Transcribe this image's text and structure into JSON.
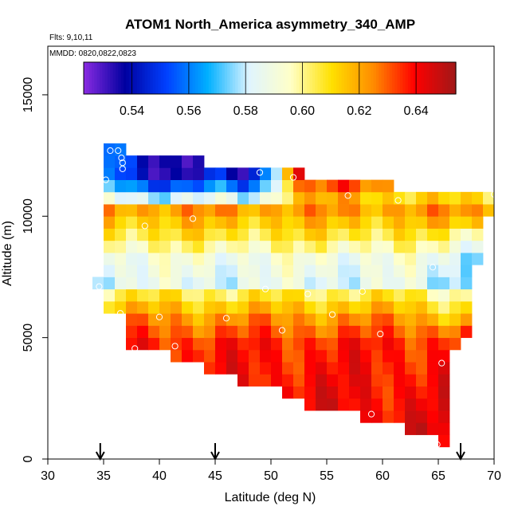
{
  "chart_data": {
    "type": "heatmap",
    "title": "ATOM1 North_America asymmetry_340_AMP",
    "flights_label": "Flts: 9,10,11",
    "mmdd_label": "MMDD: 0820,0822,0823",
    "xlabel": "Latitude (deg N)",
    "ylabel": "Altitude (m)",
    "xlim": [
      30,
      70
    ],
    "ylim": [
      0,
      17000
    ],
    "x_ticks": [
      30,
      35,
      40,
      45,
      50,
      55,
      60,
      65,
      70
    ],
    "y_ticks": [
      0,
      5000,
      10000,
      15000
    ],
    "colorbar": {
      "range": [
        0.523,
        0.654
      ],
      "ticks": [
        0.54,
        0.56,
        0.58,
        0.6,
        0.62,
        0.64
      ],
      "tick_labels": [
        "0.54",
        "0.56",
        "0.58",
        "0.60",
        "0.62",
        "0.64"
      ],
      "palette": [
        "#8a2be2",
        "#0000a0",
        "#0040ff",
        "#00b0ff",
        "#dff4ff",
        "#ffffc8",
        "#ffe000",
        "#ff8c00",
        "#ff0000",
        "#a01818"
      ]
    },
    "grid": {
      "lat_start": 34,
      "lat_step": 1,
      "alt_start": 500,
      "alt_step": 500
    },
    "columns": [
      {
        "lat": 34.5,
        "alt_min": 7000,
        "alt_max": 7500
      },
      {
        "lat": 35.5,
        "alt_min": 6000,
        "alt_max": 13000
      },
      {
        "lat": 36.5,
        "alt_min": 6000,
        "alt_max": 13000
      },
      {
        "lat": 37.5,
        "alt_min": 4500,
        "alt_max": 12500
      },
      {
        "lat": 38.5,
        "alt_min": 4500,
        "alt_max": 12500
      },
      {
        "lat": 39.5,
        "alt_min": 4500,
        "alt_max": 12500
      },
      {
        "lat": 40.5,
        "alt_min": 4500,
        "alt_max": 12500
      },
      {
        "lat": 41.5,
        "alt_min": 4000,
        "alt_max": 12500
      },
      {
        "lat": 42.5,
        "alt_min": 4000,
        "alt_max": 12500
      },
      {
        "lat": 43.5,
        "alt_min": 4000,
        "alt_max": 12500
      },
      {
        "lat": 44.5,
        "alt_min": 3500,
        "alt_max": 12000
      },
      {
        "lat": 45.5,
        "alt_min": 3500,
        "alt_max": 12000
      },
      {
        "lat": 46.5,
        "alt_min": 3500,
        "alt_max": 12000
      },
      {
        "lat": 47.5,
        "alt_min": 3000,
        "alt_max": 12000
      },
      {
        "lat": 48.5,
        "alt_min": 3000,
        "alt_max": 12000
      },
      {
        "lat": 49.5,
        "alt_min": 3000,
        "alt_max": 12000
      },
      {
        "lat": 50.5,
        "alt_min": 3000,
        "alt_max": 12000
      },
      {
        "lat": 51.5,
        "alt_min": 2500,
        "alt_max": 12000
      },
      {
        "lat": 52.5,
        "alt_min": 2500,
        "alt_max": 12000
      },
      {
        "lat": 53.5,
        "alt_min": 2000,
        "alt_max": 11500
      },
      {
        "lat": 54.5,
        "alt_min": 2000,
        "alt_max": 11500
      },
      {
        "lat": 55.5,
        "alt_min": 2000,
        "alt_max": 11500
      },
      {
        "lat": 56.5,
        "alt_min": 2000,
        "alt_max": 11500
      },
      {
        "lat": 57.5,
        "alt_min": 2000,
        "alt_max": 11500
      },
      {
        "lat": 58.5,
        "alt_min": 1500,
        "alt_max": 11500
      },
      {
        "lat": 59.5,
        "alt_min": 1500,
        "alt_max": 11500
      },
      {
        "lat": 60.5,
        "alt_min": 1500,
        "alt_max": 11500
      },
      {
        "lat": 61.5,
        "alt_min": 1500,
        "alt_max": 11000
      },
      {
        "lat": 62.5,
        "alt_min": 1000,
        "alt_max": 11000
      },
      {
        "lat": 63.5,
        "alt_min": 1000,
        "alt_max": 11000
      },
      {
        "lat": 64.5,
        "alt_min": 1000,
        "alt_max": 11000
      },
      {
        "lat": 65.5,
        "alt_min": 500,
        "alt_max": 11000
      },
      {
        "lat": 66.5,
        "alt_min": 4500,
        "alt_max": 11000
      },
      {
        "lat": 67.5,
        "alt_min": 5000,
        "alt_max": 11000
      },
      {
        "lat": 68.5,
        "alt_min": 8000,
        "alt_max": 11000
      },
      {
        "lat": 69.5,
        "alt_min": 10000,
        "alt_max": 11000
      }
    ],
    "profile": [
      {
        "alt": 500,
        "value": 0.643
      },
      {
        "alt": 2500,
        "value": 0.64
      },
      {
        "alt": 4500,
        "value": 0.636
      },
      {
        "alt": 5500,
        "value": 0.624
      },
      {
        "alt": 6500,
        "value": 0.606
      },
      {
        "alt": 7000,
        "value": 0.585
      },
      {
        "alt": 8000,
        "value": 0.59
      },
      {
        "alt": 9000,
        "value": 0.608
      },
      {
        "alt": 10000,
        "value": 0.622
      },
      {
        "alt": 10500,
        "value": 0.603
      },
      {
        "alt": 11500,
        "value": 0.585
      },
      {
        "alt": 12500,
        "value": 0.575
      }
    ],
    "upper_band": [
      {
        "lat": 35,
        "value": 0.565
      },
      {
        "lat": 38,
        "value": 0.54
      },
      {
        "lat": 42,
        "value": 0.535
      },
      {
        "lat": 45,
        "value": 0.545
      },
      {
        "lat": 48,
        "value": 0.53
      },
      {
        "lat": 50,
        "value": 0.57
      },
      {
        "lat": 52,
        "value": 0.64
      },
      {
        "lat": 57,
        "value": 0.65
      },
      {
        "lat": 62,
        "value": 0.63
      },
      {
        "lat": 70,
        "value": 0.62
      }
    ],
    "points": [
      {
        "lat": 35.2,
        "alt": 11500
      },
      {
        "lat": 35.6,
        "alt": 12700
      },
      {
        "lat": 36.3,
        "alt": 12700
      },
      {
        "lat": 36.6,
        "alt": 12400
      },
      {
        "lat": 36.7,
        "alt": 12200
      },
      {
        "lat": 36.7,
        "alt": 11950
      },
      {
        "lat": 38.7,
        "alt": 9600
      },
      {
        "lat": 43.0,
        "alt": 9900
      },
      {
        "lat": 49.0,
        "alt": 11800
      },
      {
        "lat": 52.0,
        "alt": 11600
      },
      {
        "lat": 56.9,
        "alt": 10850
      },
      {
        "lat": 61.4,
        "alt": 10650
      },
      {
        "lat": 70.0,
        "alt": 10900
      },
      {
        "lat": 64.5,
        "alt": 7900
      },
      {
        "lat": 34.6,
        "alt": 7100
      },
      {
        "lat": 49.5,
        "alt": 7000
      },
      {
        "lat": 53.3,
        "alt": 6800
      },
      {
        "lat": 58.2,
        "alt": 6900
      },
      {
        "lat": 36.5,
        "alt": 6000
      },
      {
        "lat": 40.0,
        "alt": 5850
      },
      {
        "lat": 46.0,
        "alt": 5800
      },
      {
        "lat": 55.5,
        "alt": 5950
      },
      {
        "lat": 51.0,
        "alt": 5300
      },
      {
        "lat": 59.8,
        "alt": 5150
      },
      {
        "lat": 37.8,
        "alt": 4550
      },
      {
        "lat": 41.4,
        "alt": 4650
      },
      {
        "lat": 65.3,
        "alt": 3950
      },
      {
        "lat": 59.0,
        "alt": 1850
      },
      {
        "lat": 64.9,
        "alt": 600
      }
    ],
    "arrows": [
      34.7,
      45.0,
      67.0
    ]
  }
}
